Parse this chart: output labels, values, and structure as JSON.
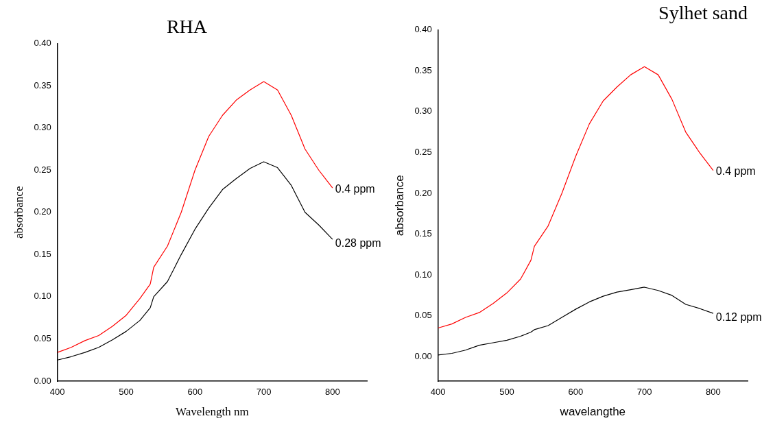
{
  "chart_data": [
    {
      "type": "line",
      "title": "RHA",
      "xlabel": "Wavelength nm",
      "ylabel": "absorbance",
      "x": [
        400,
        420,
        440,
        460,
        480,
        500,
        520,
        535,
        540,
        560,
        580,
        600,
        620,
        640,
        660,
        680,
        700,
        720,
        740,
        760,
        780,
        800
      ],
      "xlim": [
        400,
        850
      ],
      "xticks": [
        400,
        500,
        600,
        700,
        800
      ],
      "ylim": [
        0,
        0.4
      ],
      "yticks": [
        {
          "value": 0,
          "label": "0.00"
        },
        {
          "value": 0.05,
          "label": "0.05"
        },
        {
          "value": 0.1,
          "label": "0.10"
        },
        {
          "value": 0.15,
          "label": "0.15"
        },
        {
          "value": 0.2,
          "label": "0.20"
        },
        {
          "value": 0.25,
          "label": "0.25"
        },
        {
          "value": 0.3,
          "label": "0.30"
        },
        {
          "value": 0.35,
          "label": "0.35"
        },
        {
          "value": 0.4,
          "label": "0.40"
        }
      ],
      "grid": false,
      "legend": false,
      "marker": "none",
      "line_style": "solid",
      "series": [
        {
          "name": "0.4 ppm",
          "color": "#ff0000",
          "values": [
            0.034,
            0.04,
            0.048,
            0.054,
            0.065,
            0.078,
            0.098,
            0.115,
            0.135,
            0.16,
            0.2,
            0.25,
            0.29,
            0.315,
            0.333,
            0.345,
            0.355,
            0.345,
            0.315,
            0.275,
            0.25,
            0.229
          ]
        },
        {
          "name": "0.28 ppm",
          "color": "#000000",
          "values": [
            0.025,
            0.029,
            0.034,
            0.04,
            0.049,
            0.059,
            0.072,
            0.087,
            0.1,
            0.118,
            0.15,
            0.18,
            0.205,
            0.227,
            0.24,
            0.252,
            0.26,
            0.253,
            0.232,
            0.2,
            0.185,
            0.168
          ]
        }
      ]
    },
    {
      "type": "line",
      "title": "Sylhet sand",
      "xlabel": "wavelangthe",
      "ylabel": "absorbance",
      "x": [
        400,
        420,
        440,
        460,
        480,
        500,
        520,
        535,
        540,
        560,
        580,
        600,
        620,
        640,
        660,
        680,
        700,
        720,
        740,
        760,
        780,
        800
      ],
      "xlim": [
        400,
        850
      ],
      "xticks": [
        400,
        500,
        600,
        700,
        800
      ],
      "ylim": [
        -0.03,
        0.4
      ],
      "yticks": [
        {
          "value": 0,
          "label": "0.00"
        },
        {
          "value": 0.05,
          "label": "0.05"
        },
        {
          "value": 0.1,
          "label": "0.10"
        },
        {
          "value": 0.15,
          "label": "0.15"
        },
        {
          "value": 0.2,
          "label": "0.20"
        },
        {
          "value": 0.25,
          "label": "0.25"
        },
        {
          "value": 0.3,
          "label": "0.30"
        },
        {
          "value": 0.35,
          "label": "0.35"
        },
        {
          "value": 0.4,
          "label": "0.40"
        }
      ],
      "grid": false,
      "legend": false,
      "marker": "none",
      "line_style": "solid",
      "series": [
        {
          "name": "0.4 ppm",
          "color": "#ff0000",
          "values": [
            0.035,
            0.04,
            0.048,
            0.054,
            0.065,
            0.078,
            0.095,
            0.118,
            0.135,
            0.16,
            0.2,
            0.245,
            0.285,
            0.313,
            0.33,
            0.345,
            0.355,
            0.345,
            0.315,
            0.275,
            0.25,
            0.228
          ]
        },
        {
          "name": "0.12 ppm",
          "color": "#000000",
          "values": [
            0.002,
            0.004,
            0.008,
            0.014,
            0.017,
            0.02,
            0.025,
            0.03,
            0.033,
            0.038,
            0.048,
            0.058,
            0.067,
            0.074,
            0.079,
            0.082,
            0.085,
            0.081,
            0.075,
            0.064,
            0.059,
            0.053
          ]
        }
      ]
    }
  ]
}
